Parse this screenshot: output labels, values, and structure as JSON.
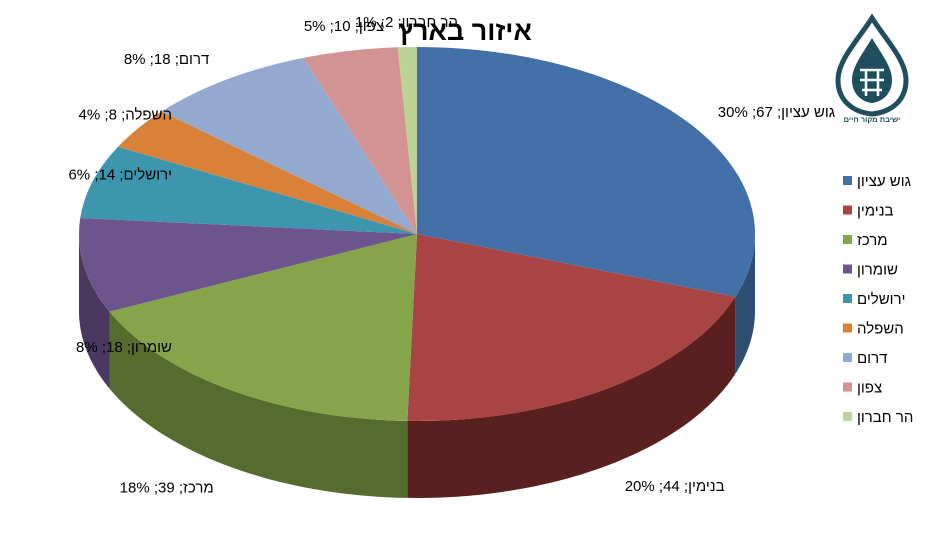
{
  "chart_data": {
    "type": "pie",
    "variant": "3d",
    "title": "איזור בארץ",
    "label_format": "{name}; {value}; {percent}%",
    "slices": [
      {
        "name": "גוש עציון",
        "value": 67,
        "percent": 30,
        "color": "#4470A8",
        "side_color": "#2E4D73"
      },
      {
        "name": "בנימין",
        "value": 44,
        "percent": 20,
        "color": "#A84443",
        "side_color": "#5A2020"
      },
      {
        "name": "מרכז",
        "value": 39,
        "percent": 18,
        "color": "#86A44A",
        "side_color": "#566B2E"
      },
      {
        "name": "שומרון",
        "value": 18,
        "percent": 8,
        "color": "#6E548D",
        "side_color": "#4A3860"
      },
      {
        "name": "ירושלים",
        "value": 14,
        "percent": 6,
        "color": "#3D96AE",
        "side_color": "#276373"
      },
      {
        "name": "השפלה",
        "value": 8,
        "percent": 4,
        "color": "#DA8139",
        "side_color": "#92551F"
      },
      {
        "name": "דרום",
        "value": 18,
        "percent": 8,
        "color": "#93A9D0",
        "side_color": "#6578A0"
      },
      {
        "name": "צפון",
        "value": 10,
        "percent": 5,
        "color": "#D29392",
        "side_color": "#9A6463"
      },
      {
        "name": "הר חברון",
        "value": 2,
        "percent": 1,
        "color": "#BBD395",
        "side_color": "#8AA068"
      }
    ],
    "legend_position": "right"
  },
  "logo": {
    "caption": "ישיבת מקור חיים",
    "color": "#1f4e5f"
  }
}
